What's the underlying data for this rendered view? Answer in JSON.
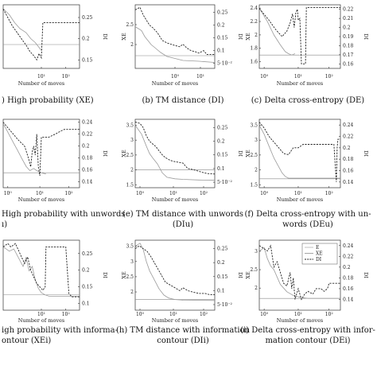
{
  "chart_data": [
    {
      "type": "line",
      "caption": ") High probability (XE)",
      "xlabel": "Number of moves",
      "ylabel": "",
      "y2label": "DI",
      "xticks": [
        "10¹",
        "10²"
      ],
      "y1ticks": [],
      "y2ticks": [
        "0.15",
        "0.2",
        "0.25"
      ],
      "ylim": [
        1.4,
        3.0
      ],
      "y2lim": [
        0.13,
        0.28
      ],
      "xlim": [
        0.0,
        1.0
      ],
      "reference_y": 2.0,
      "legend": false,
      "series": [
        {
          "name": "XE",
          "axis": "left",
          "x": [
            0.0,
            0.08,
            0.15,
            0.22,
            0.3,
            0.36,
            0.42,
            0.46,
            0.5
          ],
          "y": [
            2.9,
            2.75,
            2.55,
            2.4,
            2.3,
            2.15,
            2.05,
            1.95,
            1.85
          ]
        },
        {
          "name": "DI",
          "axis": "right",
          "x": [
            0.0,
            0.06,
            0.12,
            0.18,
            0.24,
            0.3,
            0.35,
            0.4,
            0.44,
            0.47,
            0.5,
            0.52,
            0.7,
            1.0
          ],
          "y": [
            0.27,
            0.25,
            0.23,
            0.215,
            0.2,
            0.185,
            0.17,
            0.16,
            0.15,
            0.165,
            0.155,
            0.238,
            0.238,
            0.238
          ]
        }
      ]
    },
    {
      "type": "line",
      "caption": "(b) TM distance (DI)",
      "xlabel": "Number of moves",
      "ylabel": "XE",
      "y2label": "DI",
      "xticks": [
        "10⁰",
        "10¹"
      ],
      "y1ticks": [
        "2",
        "2.5"
      ],
      "y2ticks": [
        "5·10⁻²",
        "0.1",
        "0.15",
        "0.2",
        "0.25"
      ],
      "ylim": [
        1.4,
        3.0
      ],
      "y2lim": [
        0.03,
        0.28
      ],
      "xlim": [
        0.0,
        1.0
      ],
      "reference_y": 1.72,
      "legend": false,
      "series": [
        {
          "name": "XE",
          "axis": "left",
          "x": [
            0.0,
            0.08,
            0.12,
            0.16,
            0.2,
            0.26,
            0.32,
            0.4,
            0.5,
            0.6,
            0.8,
            1.0
          ],
          "y": [
            2.45,
            2.35,
            2.2,
            2.1,
            2.0,
            1.9,
            1.8,
            1.7,
            1.65,
            1.6,
            1.58,
            1.55
          ]
        },
        {
          "name": "DI",
          "axis": "right",
          "x": [
            0.0,
            0.06,
            0.1,
            0.14,
            0.18,
            0.22,
            0.28,
            0.34,
            0.4,
            0.5,
            0.56,
            0.6,
            0.65,
            0.7,
            0.76,
            0.8,
            0.86,
            0.9,
            1.0
          ],
          "y": [
            0.26,
            0.27,
            0.24,
            0.22,
            0.2,
            0.19,
            0.17,
            0.14,
            0.13,
            0.12,
            0.115,
            0.125,
            0.11,
            0.1,
            0.095,
            0.09,
            0.1,
            0.085,
            0.085
          ]
        }
      ]
    },
    {
      "type": "line",
      "caption": "(c) Delta cross-entropy (DE)",
      "xlabel": "Number of moves",
      "ylabel": "XE",
      "y2label": "DI",
      "xticks": [
        "10⁰",
        "10¹",
        "10²"
      ],
      "y1ticks": [
        "1.6",
        "1.8",
        "2",
        "2.2",
        "2.4"
      ],
      "y2ticks": [
        "0.16",
        "0.17",
        "0.18",
        "0.19",
        "0.2",
        "0.21",
        "0.22"
      ],
      "ylim": [
        1.5,
        2.45
      ],
      "y2lim": [
        0.155,
        0.225
      ],
      "xlim": [
        0.0,
        1.0
      ],
      "reference_y": 1.7,
      "legend": false,
      "series": [
        {
          "name": "XE",
          "axis": "left",
          "x": [
            0.0,
            0.1,
            0.18,
            0.26,
            0.32,
            0.36,
            0.4,
            0.44
          ],
          "y": [
            2.4,
            2.2,
            2.0,
            1.85,
            1.75,
            1.72,
            1.7,
            1.72
          ]
        },
        {
          "name": "DI",
          "axis": "right",
          "x": [
            0.0,
            0.12,
            0.2,
            0.28,
            0.34,
            0.38,
            0.41,
            0.43,
            0.45,
            0.47,
            0.48,
            0.5,
            0.52,
            0.55,
            0.57,
            0.58,
            1.0
          ],
          "y": [
            0.221,
            0.208,
            0.198,
            0.19,
            0.196,
            0.205,
            0.215,
            0.2,
            0.216,
            0.22,
            0.208,
            0.21,
            0.16,
            0.16,
            0.16,
            0.222,
            0.222
          ]
        }
      ]
    },
    {
      "type": "line",
      "caption": "High probability with unwords",
      "caption_line2": "ı)",
      "xlabel": "Number of moves",
      "ylabel": "",
      "y2label": "DI",
      "xticks": [
        "10⁰",
        "10¹",
        "10²"
      ],
      "y1ticks": [],
      "y2ticks": [
        "0.14",
        "0.16",
        "0.18",
        "0.2",
        "0.22",
        "0.24"
      ],
      "ylim": [
        1.4,
        3.0
      ],
      "y2lim": [
        0.13,
        0.245
      ],
      "xlim": [
        0.0,
        1.0
      ],
      "reference_y": 1.75,
      "legend": false,
      "series": [
        {
          "name": "XE",
          "axis": "left",
          "x": [
            0.0,
            0.06,
            0.12,
            0.18,
            0.24,
            0.3,
            0.35,
            0.4,
            0.44,
            0.5,
            0.56
          ],
          "y": [
            2.9,
            2.7,
            2.5,
            2.3,
            2.1,
            1.9,
            1.8,
            1.85,
            1.8,
            1.75,
            1.72
          ]
        },
        {
          "name": "DI",
          "axis": "right",
          "x": [
            0.0,
            0.1,
            0.2,
            0.28,
            0.33,
            0.36,
            0.38,
            0.4,
            0.42,
            0.44,
            0.46,
            0.48,
            0.5,
            0.6,
            0.68,
            0.75,
            0.8,
            0.88,
            1.0
          ],
          "y": [
            0.24,
            0.225,
            0.21,
            0.2,
            0.18,
            0.165,
            0.19,
            0.2,
            0.185,
            0.22,
            0.165,
            0.15,
            0.215,
            0.215,
            0.22,
            0.225,
            0.228,
            0.228,
            0.228
          ]
        }
      ]
    },
    {
      "type": "line",
      "caption": "(e) TM distance with unwords",
      "caption_line2": "(DIu)",
      "xlabel": "Number of moves",
      "ylabel": "XE",
      "y2label": "DI",
      "xticks": [
        "10⁰",
        "10¹",
        "10²"
      ],
      "y1ticks": [
        "1.5",
        "2",
        "2.5",
        "3",
        "3.5"
      ],
      "y2ticks": [
        "5·10⁻²",
        "0.1",
        "0.15",
        "0.2",
        "0.25"
      ],
      "ylim": [
        1.4,
        3.7
      ],
      "y2lim": [
        0.03,
        0.28
      ],
      "xlim": [
        0.0,
        1.0
      ],
      "reference_y": 2.0,
      "legend": false,
      "series": [
        {
          "name": "XE",
          "axis": "left",
          "x": [
            0.0,
            0.08,
            0.14,
            0.18,
            0.22,
            0.28,
            0.34,
            0.4,
            0.5,
            0.6,
            0.8,
            1.0
          ],
          "y": [
            3.5,
            3.2,
            2.8,
            2.55,
            2.4,
            2.2,
            1.9,
            1.75,
            1.7,
            1.68,
            1.66,
            1.65
          ]
        },
        {
          "name": "DI",
          "axis": "right",
          "x": [
            0.0,
            0.06,
            0.1,
            0.14,
            0.18,
            0.22,
            0.26,
            0.3,
            0.34,
            0.38,
            0.44,
            0.5,
            0.6,
            0.66,
            0.7,
            0.74,
            0.8,
            0.86,
            0.9,
            1.0
          ],
          "y": [
            0.27,
            0.265,
            0.25,
            0.22,
            0.2,
            0.19,
            0.18,
            0.165,
            0.15,
            0.14,
            0.13,
            0.125,
            0.12,
            0.1,
            0.098,
            0.095,
            0.09,
            0.085,
            0.082,
            0.08
          ]
        }
      ]
    },
    {
      "type": "line",
      "caption": "(f) Delta cross-entropy with un-",
      "caption_line2": "words (DEu)",
      "xlabel": "Number of moves",
      "ylabel": "XE",
      "y2label": "DI",
      "xticks": [
        "10⁰",
        "10¹",
        "10²"
      ],
      "y1ticks": [
        "1.5",
        "2",
        "2.5",
        "3",
        "3.5"
      ],
      "y2ticks": [
        "0.14",
        "0.16",
        "0.18",
        "0.2",
        "0.22",
        "0.24"
      ],
      "ylim": [
        1.4,
        3.7
      ],
      "y2lim": [
        0.13,
        0.25
      ],
      "xlim": [
        0.0,
        1.0
      ],
      "reference_y": 1.7,
      "legend": false,
      "series": [
        {
          "name": "XE",
          "axis": "left",
          "x": [
            0.0,
            0.06,
            0.12,
            0.18,
            0.24,
            0.28,
            0.32,
            0.36,
            1.0
          ],
          "y": [
            3.5,
            3.2,
            2.8,
            2.4,
            2.1,
            1.9,
            1.78,
            1.72,
            1.72
          ]
        },
        {
          "name": "DI",
          "axis": "right",
          "x": [
            0.0,
            0.06,
            0.12,
            0.18,
            0.24,
            0.3,
            0.36,
            0.42,
            0.48,
            0.54,
            0.62,
            0.7,
            0.78,
            0.86,
            0.92,
            0.95,
            0.96,
            0.97,
            1.0
          ],
          "y": [
            0.245,
            0.235,
            0.22,
            0.21,
            0.2,
            0.19,
            0.188,
            0.2,
            0.2,
            0.206,
            0.206,
            0.206,
            0.206,
            0.206,
            0.206,
            0.14,
            0.2,
            0.215,
            0.215
          ]
        }
      ]
    },
    {
      "type": "line",
      "caption": "igh probability with informa-",
      "caption_line2": "ontour (XEi)",
      "xlabel": "Number of moves",
      "ylabel": "",
      "y2label": "DI",
      "xticks": [
        "10¹",
        "10²"
      ],
      "y1ticks": [],
      "y2ticks": [
        "0.1",
        "0.15",
        "0.2",
        "0.25"
      ],
      "ylim": [
        1.4,
        3.0
      ],
      "y2lim": [
        0.08,
        0.29
      ],
      "xlim": [
        0.0,
        1.0
      ],
      "reference_y": 1.75,
      "legend": false,
      "series": [
        {
          "name": "XE",
          "axis": "left",
          "x": [
            0.0,
            0.08,
            0.14,
            0.2,
            0.26,
            0.3,
            0.34,
            0.38,
            0.42,
            0.46,
            0.5,
            0.55,
            0.6,
            1.0
          ],
          "y": [
            2.85,
            2.75,
            2.8,
            2.6,
            2.4,
            2.6,
            2.3,
            2.4,
            2.1,
            1.9,
            1.8,
            1.75,
            1.72,
            1.72
          ]
        },
        {
          "name": "DI",
          "axis": "right",
          "x": [
            0.0,
            0.06,
            0.1,
            0.16,
            0.22,
            0.28,
            0.32,
            0.36,
            0.4,
            0.44,
            0.48,
            0.52,
            0.55,
            0.56,
            0.82,
            0.86,
            0.9,
            1.0
          ],
          "y": [
            0.27,
            0.28,
            0.27,
            0.28,
            0.25,
            0.22,
            0.24,
            0.2,
            0.18,
            0.16,
            0.15,
            0.14,
            0.15,
            0.27,
            0.27,
            0.13,
            0.12,
            0.12
          ]
        }
      ]
    },
    {
      "type": "line",
      "caption": "(h) TM distance with information",
      "caption_line2": "contour (DIi)",
      "xlabel": "Number of moves",
      "ylabel": "XE",
      "y2label": "DI",
      "xticks": [
        "10⁰",
        "10¹",
        "10²"
      ],
      "y1ticks": [
        "2",
        "2.5",
        "3",
        "3.5"
      ],
      "y2ticks": [
        "5·10⁻²",
        "0.1",
        "0.15",
        "0.2",
        "0.25"
      ],
      "ylim": [
        1.4,
        3.7
      ],
      "y2lim": [
        0.03,
        0.28
      ],
      "xlim": [
        0.0,
        1.0
      ],
      "reference_y": 1.75,
      "legend": false,
      "series": [
        {
          "name": "XE",
          "axis": "left",
          "x": [
            0.0,
            0.06,
            0.1,
            0.14,
            0.18,
            0.24,
            0.3,
            0.36,
            0.42,
            0.5,
            0.6,
            1.0
          ],
          "y": [
            3.5,
            3.6,
            3.4,
            3.0,
            2.7,
            2.4,
            2.1,
            1.9,
            1.8,
            1.75,
            1.73,
            1.72
          ]
        },
        {
          "name": "DI",
          "axis": "right",
          "x": [
            0.0,
            0.05,
            0.1,
            0.15,
            0.2,
            0.26,
            0.3,
            0.34,
            0.38,
            0.44,
            0.5,
            0.56,
            0.6,
            0.66,
            0.72,
            0.8,
            0.88,
            0.94,
            1.0
          ],
          "y": [
            0.25,
            0.26,
            0.25,
            0.24,
            0.22,
            0.19,
            0.17,
            0.15,
            0.13,
            0.12,
            0.11,
            0.1,
            0.11,
            0.1,
            0.095,
            0.09,
            0.09,
            0.085,
            0.085
          ]
        }
      ]
    },
    {
      "type": "line",
      "caption": "(i) Delta cross-entropy with infor-",
      "caption_line2": "mation contour (DEi)",
      "xlabel": "Number of moves",
      "ylabel": "XE",
      "y2label": "DI",
      "xticks": [
        "10⁰",
        "10¹",
        "10²"
      ],
      "y1ticks": [
        "2",
        "2.5",
        "3"
      ],
      "y2ticks": [
        "0.14",
        "0.16",
        "0.18",
        "0.2",
        "0.22",
        "0.24"
      ],
      "ylim": [
        1.4,
        3.3
      ],
      "y2lim": [
        0.12,
        0.25
      ],
      "xlim": [
        0.0,
        1.0
      ],
      "reference_y": 1.72,
      "legend": true,
      "legend_entries": [
        "E",
        "XE",
        "DI"
      ],
      "series": [
        {
          "name": "XE",
          "axis": "left",
          "x": [
            0.0,
            0.06,
            0.1,
            0.14,
            0.18,
            0.22,
            0.26,
            0.3,
            0.34,
            0.38,
            0.42,
            0.46,
            0.5,
            0.6,
            1.0
          ],
          "y": [
            3.0,
            3.1,
            2.8,
            2.6,
            2.5,
            2.3,
            2.1,
            2.0,
            1.9,
            1.85,
            1.8,
            1.78,
            1.75,
            1.72,
            1.72
          ]
        },
        {
          "name": "DI",
          "axis": "right",
          "x": [
            0.0,
            0.05,
            0.1,
            0.14,
            0.18,
            0.22,
            0.26,
            0.3,
            0.34,
            0.38,
            0.4,
            0.42,
            0.44,
            0.46,
            0.48,
            0.52,
            0.56,
            0.6,
            0.66,
            0.7,
            0.76,
            0.8,
            0.84,
            0.86,
            1.0
          ],
          "y": [
            0.24,
            0.235,
            0.23,
            0.24,
            0.2,
            0.21,
            0.19,
            0.17,
            0.165,
            0.19,
            0.16,
            0.18,
            0.14,
            0.15,
            0.16,
            0.14,
            0.15,
            0.155,
            0.15,
            0.16,
            0.16,
            0.155,
            0.16,
            0.17,
            0.17
          ]
        }
      ]
    }
  ]
}
